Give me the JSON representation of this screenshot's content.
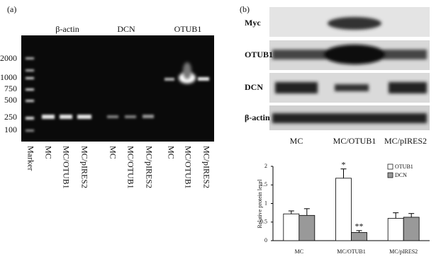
{
  "panel_a": {
    "label": "(a)",
    "headers": [
      "β-actin",
      "DCN",
      "OTUB1"
    ],
    "size_markers": [
      "2000",
      "1000",
      "750",
      "500",
      "250",
      "100"
    ],
    "lanes": [
      "Marker",
      "MC",
      "MC/OTUB1",
      "MC/pIRES2",
      "MC",
      "MC/OTUB1",
      "MC/pIRES2",
      "MC",
      "MC/OTUB1",
      "MC/pIRES2"
    ]
  },
  "panel_b": {
    "label": "(b)",
    "rows": [
      "Myc",
      "OTUB1",
      "DCN",
      "β-actin"
    ],
    "columns": [
      "MC",
      "MC/OTUB1",
      "MC/pIRES2"
    ]
  },
  "chart_data": {
    "type": "bar",
    "y_label": "Relative protein level",
    "categories": [
      "MC",
      "MC/OTUB1",
      "MC/pIRES2"
    ],
    "series": [
      {
        "name": "OTUB1",
        "color": "#ffffff",
        "values": [
          0.72,
          1.68,
          0.6
        ],
        "errors": [
          0.08,
          0.25,
          0.15
        ]
      },
      {
        "name": "DCN",
        "color": "#999999",
        "values": [
          0.68,
          0.22,
          0.63
        ],
        "errors": [
          0.18,
          0.05,
          0.1
        ]
      }
    ],
    "annotations": [
      "*",
      "**"
    ],
    "ylim": [
      0,
      2
    ],
    "yticks": [
      0,
      0.5,
      1,
      1.5,
      2
    ],
    "grid": false
  }
}
